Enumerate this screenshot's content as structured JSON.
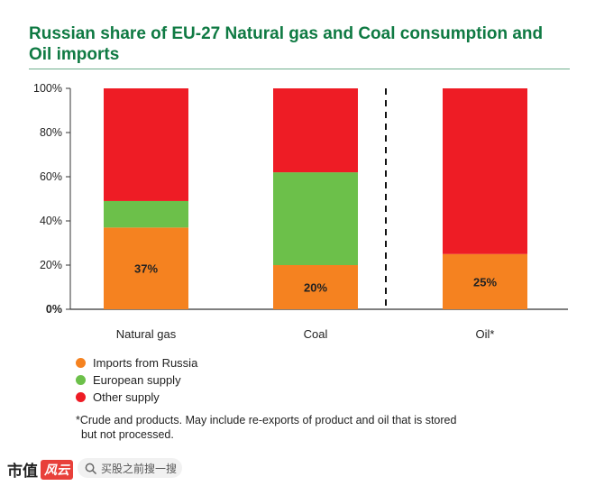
{
  "chart_data": {
    "type": "bar",
    "stacked": true,
    "title": "Russian share of EU-27 Natural gas and Coal consumption and Oil imports",
    "categories": [
      "Natural gas",
      "Coal",
      "Oil*"
    ],
    "series": [
      {
        "name": "Imports from Russia",
        "color": "#f58220",
        "values": [
          37,
          20,
          25
        ]
      },
      {
        "name": "European supply",
        "color": "#6cc04a",
        "values": [
          12,
          42,
          0
        ]
      },
      {
        "name": "Other supply",
        "color": "#ee1c25",
        "values": [
          51,
          38,
          75
        ]
      }
    ],
    "data_labels": [
      "37%",
      "20%",
      "25%"
    ],
    "yticks": [
      "0%",
      "20%",
      "40%",
      "60%",
      "80%",
      "100%"
    ],
    "ylim": [
      0,
      100
    ],
    "divider_before": "Oil*",
    "grid": false,
    "legend_position": "bottom-left",
    "footnote": [
      "*Crude and products. May include re-exports of product and oil that is stored",
      "but not processed."
    ]
  },
  "footer": {
    "brand": "市值",
    "brand_badge": "风云",
    "search_placeholder": "买股之前搜一搜",
    "search_icon": "search-icon"
  }
}
